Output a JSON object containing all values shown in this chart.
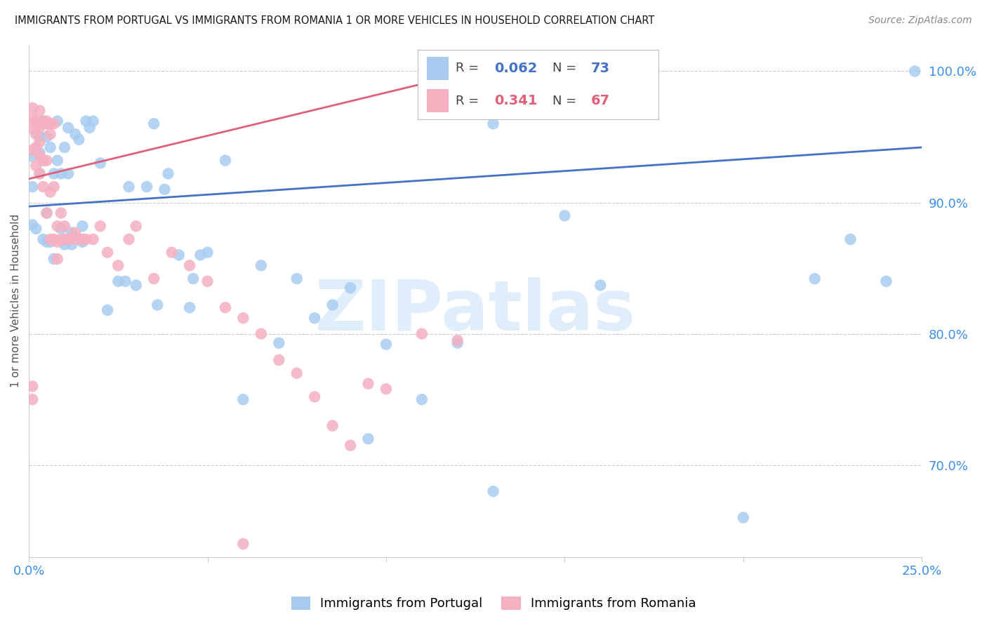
{
  "title": "IMMIGRANTS FROM PORTUGAL VS IMMIGRANTS FROM ROMANIA 1 OR MORE VEHICLES IN HOUSEHOLD CORRELATION CHART",
  "source": "Source: ZipAtlas.com",
  "ylabel": "1 or more Vehicles in Household",
  "xlim": [
    0.0,
    0.25
  ],
  "ylim": [
    0.63,
    1.02
  ],
  "ytick_positions": [
    0.7,
    0.8,
    0.9,
    1.0
  ],
  "ytick_labels": [
    "70.0%",
    "80.0%",
    "90.0%",
    "100.0%"
  ],
  "blue_color": "#A8CCF0",
  "pink_color": "#F5B0C0",
  "blue_line_color": "#4472C4",
  "pink_line_color": "#E0607A",
  "blue_R": 0.062,
  "blue_N": 73,
  "pink_R": 0.341,
  "pink_N": 67,
  "legend_label_blue": "Immigrants from Portugal",
  "legend_label_pink": "Immigrants from Romania",
  "watermark": "ZIPatlas",
  "blue_line_x0": 0.0,
  "blue_line_y0": 0.897,
  "blue_line_x1": 0.25,
  "blue_line_y1": 0.942,
  "pink_line_x0": 0.0,
  "pink_line_y0": 0.918,
  "pink_line_x1": 0.14,
  "pink_line_y1": 1.01,
  "blue_x": [
    0.001,
    0.001,
    0.001,
    0.002,
    0.002,
    0.002,
    0.003,
    0.003,
    0.003,
    0.004,
    0.004,
    0.004,
    0.005,
    0.005,
    0.005,
    0.006,
    0.006,
    0.007,
    0.007,
    0.008,
    0.008,
    0.009,
    0.009,
    0.01,
    0.01,
    0.011,
    0.011,
    0.012,
    0.012,
    0.013,
    0.014,
    0.015,
    0.015,
    0.016,
    0.017,
    0.018,
    0.02,
    0.022,
    0.025,
    0.027,
    0.028,
    0.03,
    0.033,
    0.036,
    0.039,
    0.042,
    0.046,
    0.05,
    0.055,
    0.06,
    0.065,
    0.07,
    0.075,
    0.08,
    0.085,
    0.09,
    0.095,
    0.1,
    0.11,
    0.12,
    0.13,
    0.16,
    0.2,
    0.22,
    0.23,
    0.24,
    0.248,
    0.15,
    0.13,
    0.035,
    0.038,
    0.045,
    0.048
  ],
  "blue_y": [
    0.883,
    0.912,
    0.935,
    0.94,
    0.96,
    0.88,
    0.922,
    0.938,
    0.95,
    0.872,
    0.932,
    0.962,
    0.87,
    0.892,
    0.95,
    0.87,
    0.942,
    0.857,
    0.922,
    0.932,
    0.962,
    0.88,
    0.922,
    0.868,
    0.942,
    0.922,
    0.957,
    0.868,
    0.877,
    0.952,
    0.948,
    0.87,
    0.882,
    0.962,
    0.957,
    0.962,
    0.93,
    0.818,
    0.84,
    0.84,
    0.912,
    0.837,
    0.912,
    0.822,
    0.922,
    0.86,
    0.842,
    0.862,
    0.932,
    0.75,
    0.852,
    0.793,
    0.842,
    0.812,
    0.822,
    0.835,
    0.72,
    0.792,
    0.75,
    0.793,
    0.68,
    0.837,
    0.66,
    0.842,
    0.872,
    0.84,
    1.0,
    0.89,
    0.96,
    0.96,
    0.91,
    0.82,
    0.86
  ],
  "pink_x": [
    0.001,
    0.001,
    0.001,
    0.001,
    0.002,
    0.002,
    0.002,
    0.002,
    0.003,
    0.003,
    0.003,
    0.003,
    0.004,
    0.004,
    0.004,
    0.005,
    0.005,
    0.005,
    0.006,
    0.006,
    0.006,
    0.007,
    0.007,
    0.008,
    0.008,
    0.009,
    0.009,
    0.01,
    0.01,
    0.011,
    0.012,
    0.013,
    0.014,
    0.015,
    0.016,
    0.018,
    0.02,
    0.022,
    0.025,
    0.028,
    0.03,
    0.035,
    0.04,
    0.045,
    0.05,
    0.055,
    0.06,
    0.065,
    0.07,
    0.075,
    0.08,
    0.085,
    0.09,
    0.095,
    0.1,
    0.11,
    0.12,
    0.002,
    0.003,
    0.004,
    0.005,
    0.006,
    0.007,
    0.008,
    0.001,
    0.001,
    0.06
  ],
  "pink_y": [
    0.94,
    0.956,
    0.964,
    0.972,
    0.928,
    0.942,
    0.952,
    0.962,
    0.922,
    0.936,
    0.946,
    0.957,
    0.912,
    0.932,
    0.962,
    0.892,
    0.932,
    0.962,
    0.872,
    0.908,
    0.952,
    0.872,
    0.912,
    0.857,
    0.882,
    0.872,
    0.892,
    0.872,
    0.882,
    0.872,
    0.872,
    0.877,
    0.872,
    0.872,
    0.872,
    0.872,
    0.882,
    0.862,
    0.852,
    0.872,
    0.882,
    0.842,
    0.862,
    0.852,
    0.84,
    0.82,
    0.812,
    0.8,
    0.78,
    0.77,
    0.752,
    0.73,
    0.715,
    0.762,
    0.758,
    0.8,
    0.795,
    0.96,
    0.97,
    0.96,
    0.96,
    0.96,
    0.96,
    0.87,
    0.76,
    0.75,
    0.64
  ]
}
